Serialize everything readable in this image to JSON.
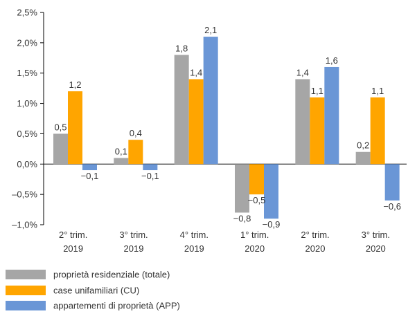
{
  "chart_data": {
    "type": "bar",
    "title": "",
    "xlabel": "",
    "ylabel": "",
    "categories": [
      [
        "2° trim.",
        "2019"
      ],
      [
        "3° trim.",
        "2019"
      ],
      [
        "4° trim.",
        "2019"
      ],
      [
        "1° trim.",
        "2020"
      ],
      [
        "2° trim.",
        "2020"
      ],
      [
        "3° trim.",
        "2020"
      ]
    ],
    "series": [
      {
        "name": "proprietà residenziale (totale)",
        "color": "#a6a6a6",
        "values": [
          0.5,
          0.1,
          1.8,
          -0.8,
          1.4,
          0.2
        ],
        "labels": [
          "0,5",
          "0,1",
          "1,8",
          "−0,8",
          "1,4",
          "0,2"
        ]
      },
      {
        "name": "case unifamiliari (CU)",
        "color": "#ffa500",
        "values": [
          1.2,
          0.4,
          1.4,
          -0.5,
          1.1,
          1.1
        ],
        "labels": [
          "1,2",
          "0,4",
          "1,4",
          "−0,5",
          "1,1",
          "1,1"
        ]
      },
      {
        "name": "appartementi di proprietà (APP)",
        "color": "#6a96d6",
        "values": [
          -0.1,
          -0.1,
          2.1,
          -0.9,
          1.6,
          -0.6
        ],
        "labels": [
          "−0,1",
          "−0,1",
          "2,1",
          "−0,9",
          "1,6",
          "−0,6"
        ]
      }
    ],
    "ylim": [
      -1.0,
      2.5
    ],
    "yticks": [
      2.5,
      2.0,
      1.5,
      1.0,
      0.5,
      0.0,
      -0.5,
      -1.0
    ],
    "ytick_labels": [
      "2,5%",
      "2,0%",
      "1,5%",
      "1,0%",
      "0,5%",
      "0,0%",
      "–0,5%",
      "–1,0%"
    ],
    "grid": false,
    "legend_position": "bottom-left"
  }
}
